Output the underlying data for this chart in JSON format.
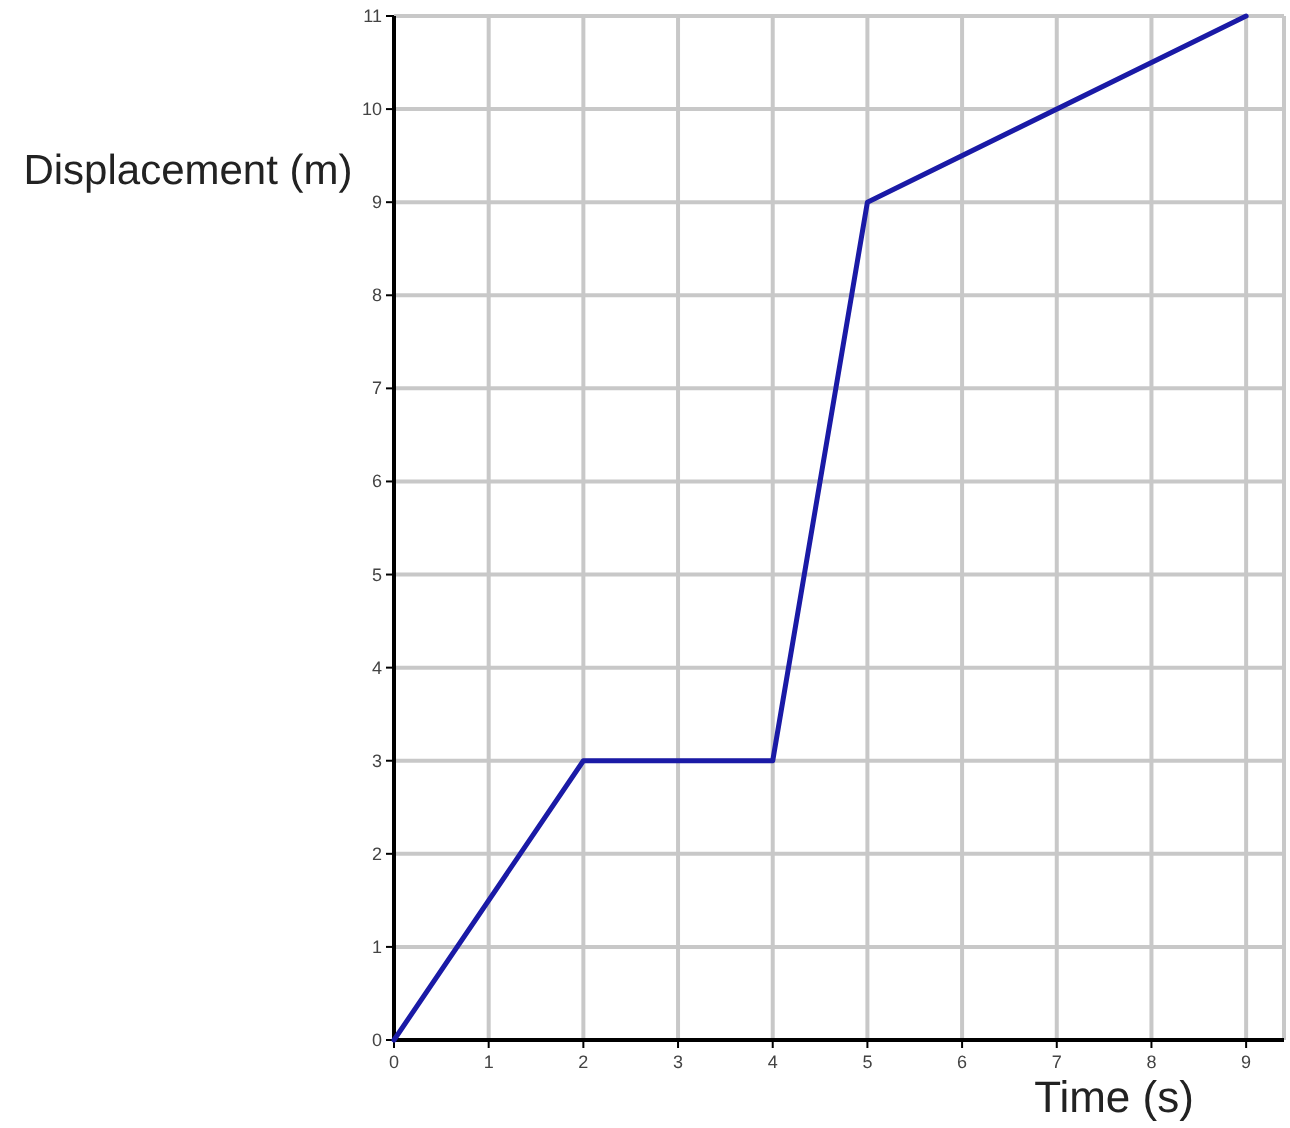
{
  "chart_data": {
    "type": "line",
    "xlabel": "Time (s)",
    "ylabel": "Displacement (m)",
    "series": [
      {
        "color": "#1a1aa6",
        "x": [
          0,
          2,
          4,
          5,
          9
        ],
        "values": [
          0,
          3,
          3,
          9,
          11
        ]
      }
    ],
    "xlim": [
      0,
      9.4
    ],
    "ylim": [
      0,
      11
    ],
    "xticks": [
      0,
      1,
      2,
      3,
      4,
      5,
      6,
      7,
      8,
      9
    ],
    "yticks": [
      0,
      1,
      2,
      3,
      4,
      5,
      6,
      7,
      8,
      9,
      10,
      11
    ],
    "grid": true,
    "marker": "none",
    "line_style": "solid"
  }
}
